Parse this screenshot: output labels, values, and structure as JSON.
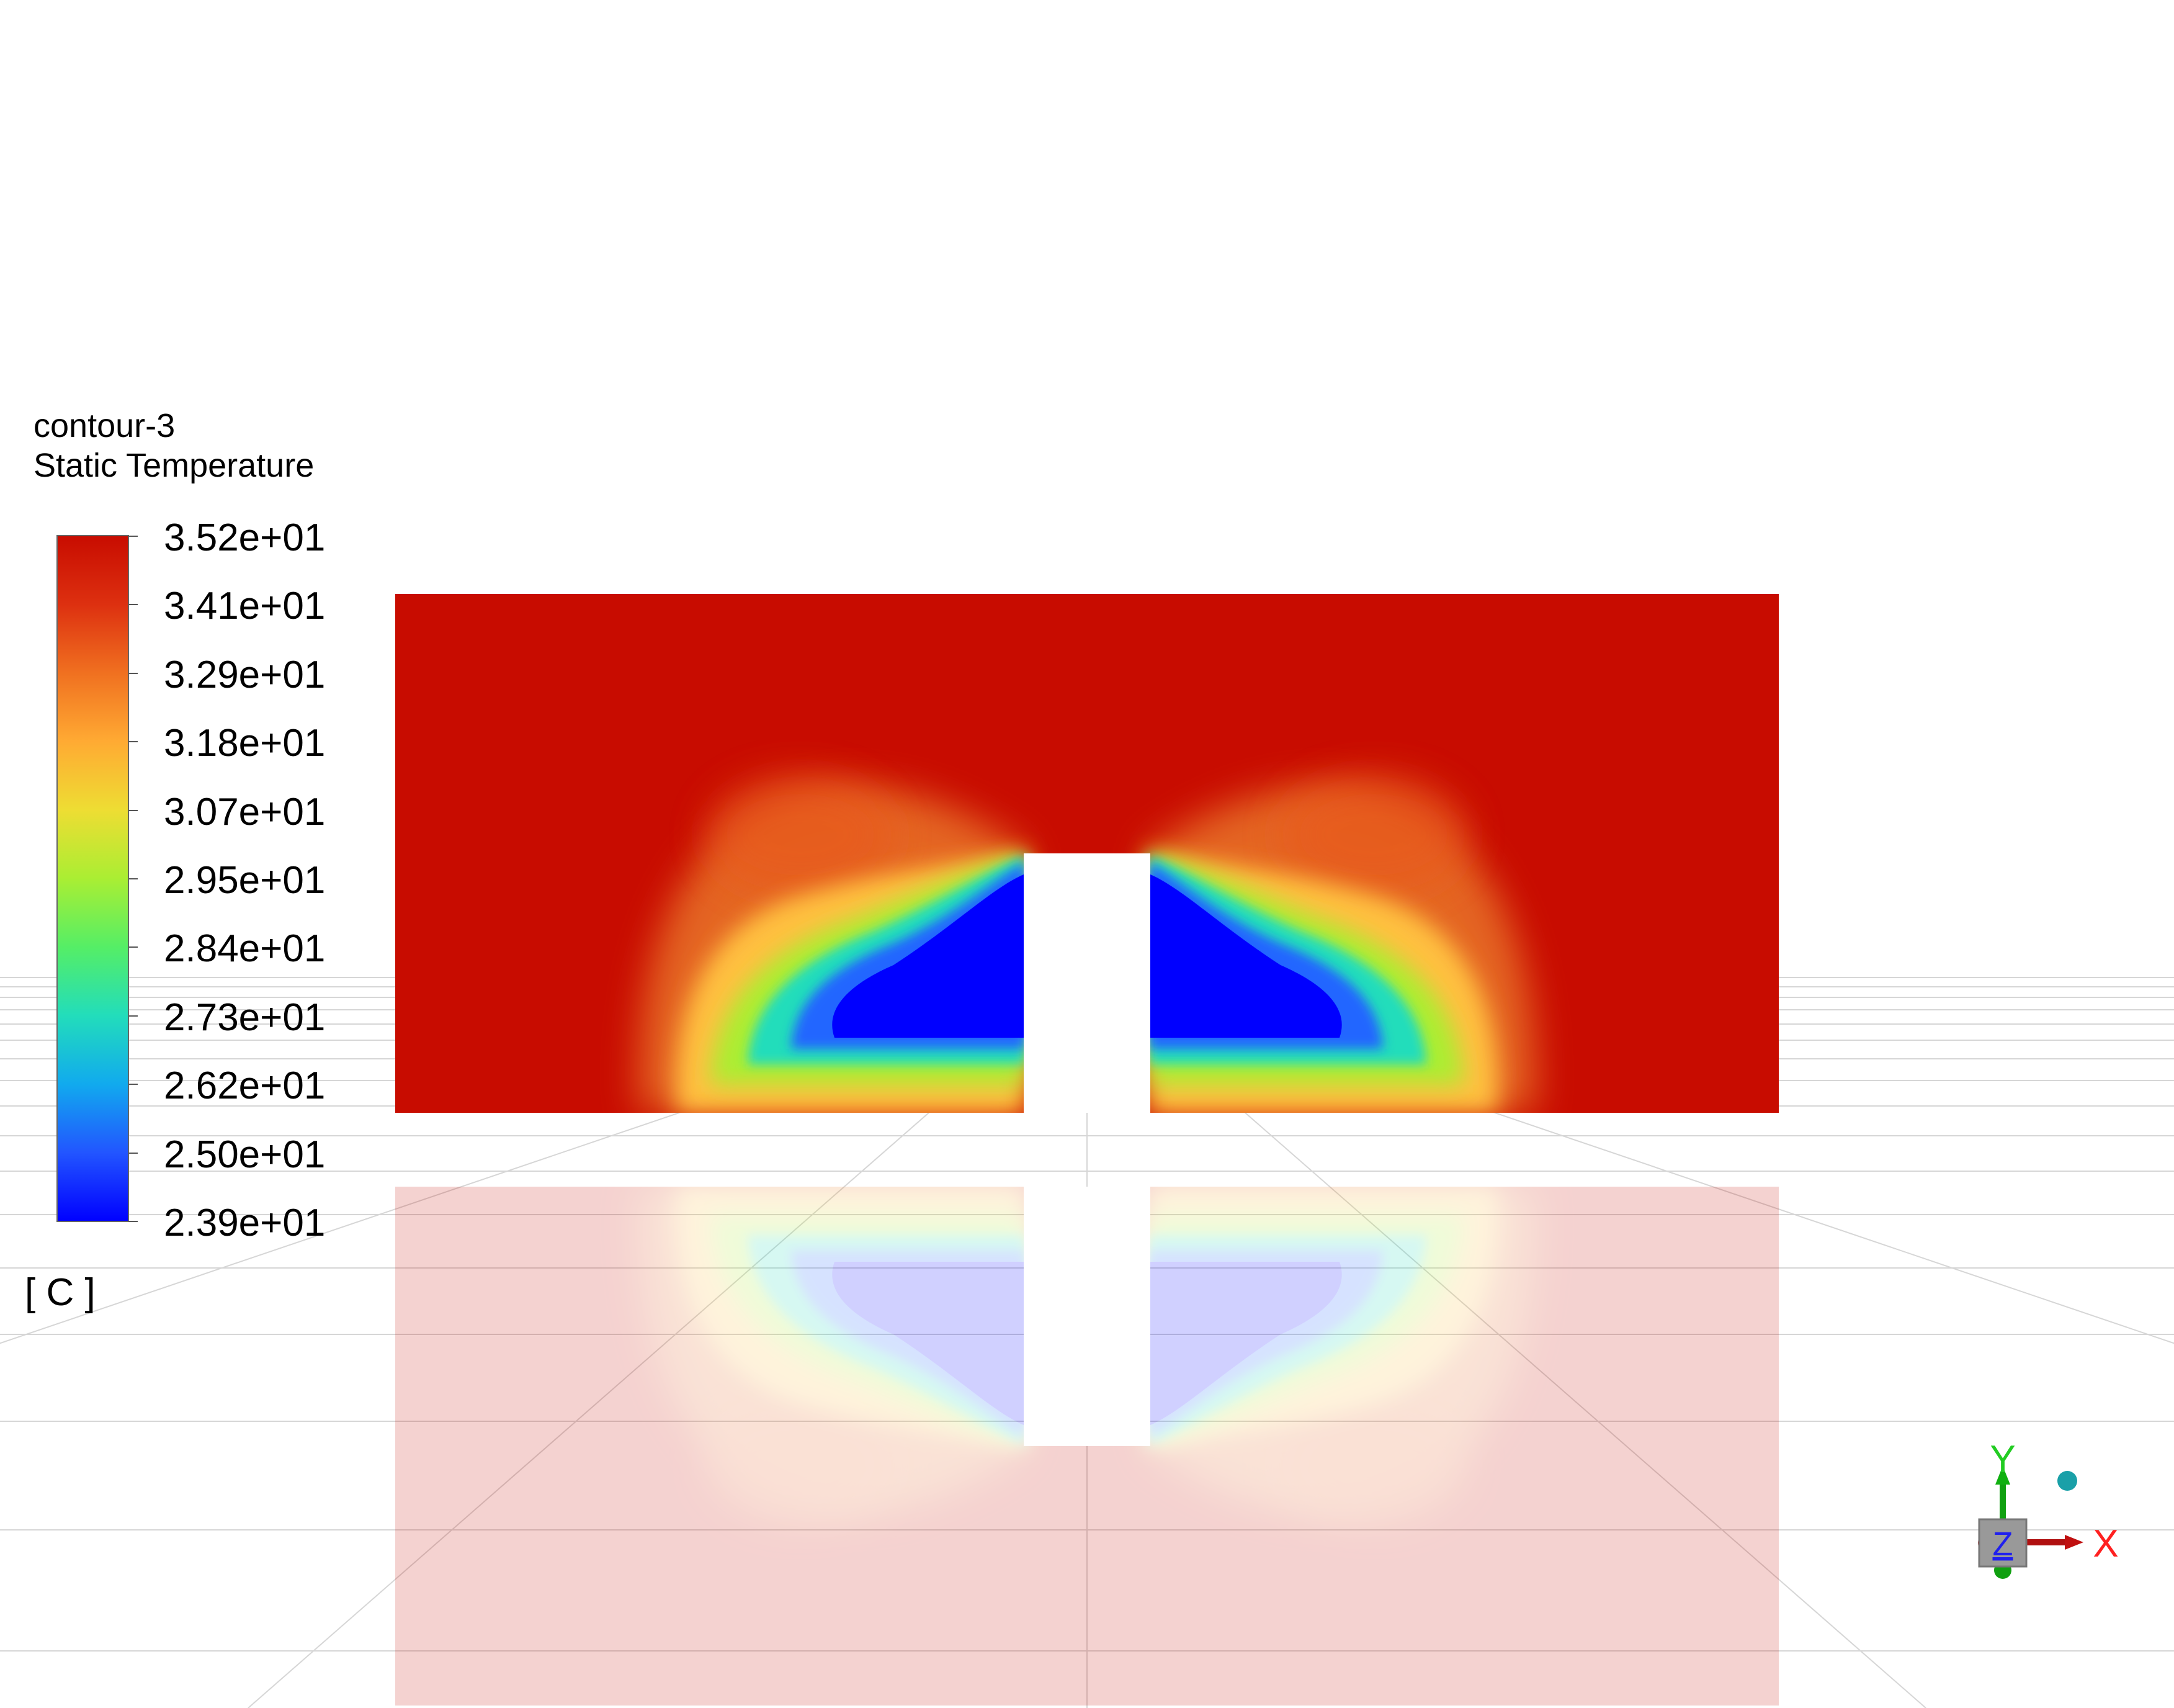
{
  "legend": {
    "name": "contour-3",
    "quantity": "Static Temperature",
    "unit": "[ C ]",
    "tick_labels": [
      "3.52e+01",
      "3.41e+01",
      "3.29e+01",
      "3.18e+01",
      "3.07e+01",
      "2.95e+01",
      "2.84e+01",
      "2.73e+01",
      "2.62e+01",
      "2.50e+01",
      "2.39e+01"
    ],
    "colormap": [
      "#0000ff",
      "#2255ff",
      "#11aaee",
      "#22ddbb",
      "#55ee66",
      "#aaee33",
      "#eedd33",
      "#ffaa33",
      "#f07020",
      "#dd3010",
      "#c80c00"
    ]
  },
  "contour": {
    "background_color": "#c80c00",
    "cold_color": "#0000ff"
  },
  "axis_triad": {
    "x_label": "X",
    "y_label": "Y",
    "z_label": "Z"
  }
}
